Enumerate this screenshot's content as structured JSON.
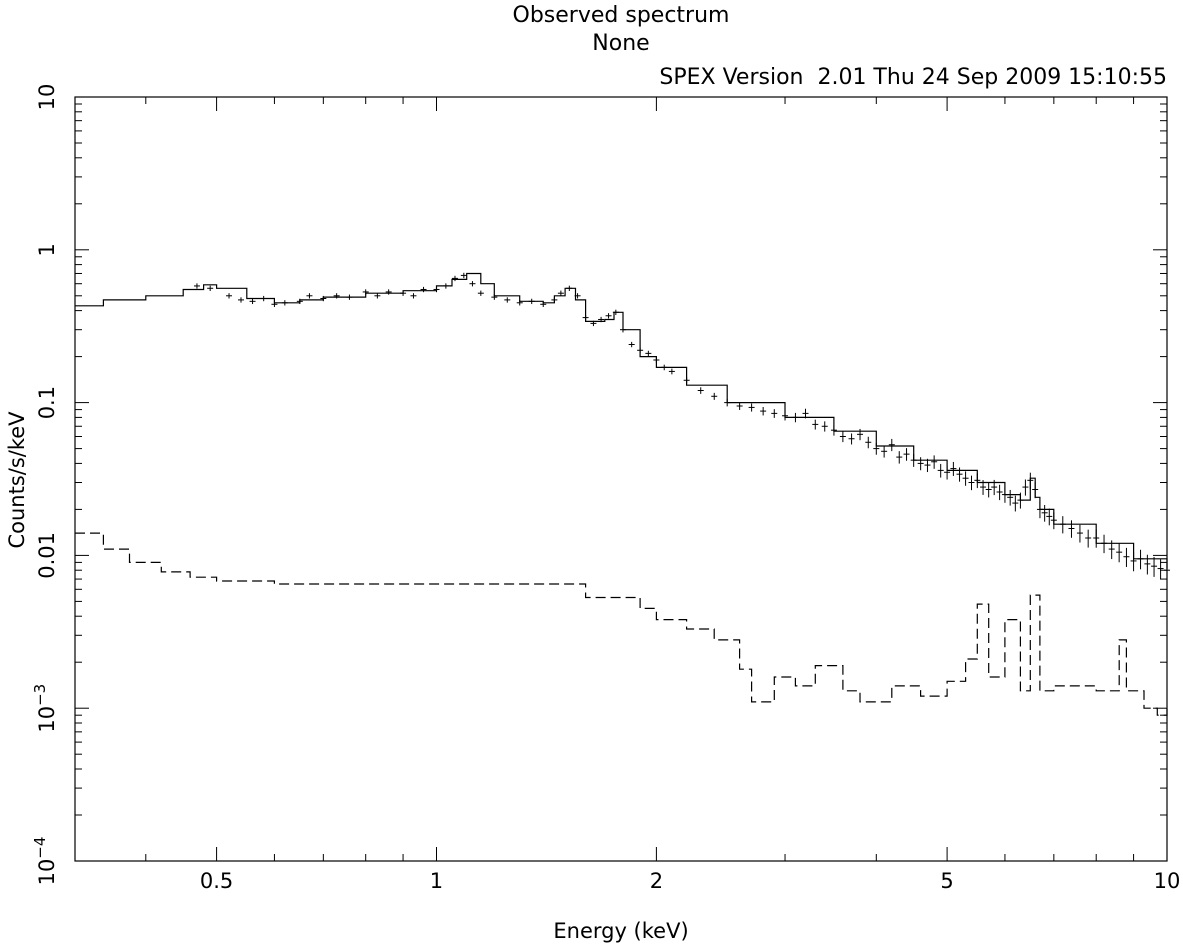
{
  "chart_data": {
    "type": "line",
    "title": "Observed spectrum",
    "subtitle": "None",
    "version_line": "SPEX Version  2.01 Thu 24 Sep 2009 15:10:55",
    "xlabel": "Energy (keV)",
    "ylabel": "Counts/s/keV",
    "xscale": "log",
    "yscale": "log",
    "xlim": [
      0.32,
      10
    ],
    "ylim": [
      0.0001,
      10
    ],
    "x_ticks": [
      {
        "value": 0.5,
        "label": "0.5"
      },
      {
        "value": 1,
        "label": "1"
      },
      {
        "value": 2,
        "label": "2"
      },
      {
        "value": 5,
        "label": "5"
      },
      {
        "value": 10,
        "label": "10"
      }
    ],
    "y_ticks": [
      {
        "value": 10,
        "label": "10"
      },
      {
        "value": 1,
        "label": "1"
      },
      {
        "value": 0.1,
        "label": "0.1"
      },
      {
        "value": 0.01,
        "label": "0.01"
      },
      {
        "value": 0.001,
        "label": "10",
        "exp": "−3"
      },
      {
        "value": 0.0001,
        "label": "10",
        "exp": "−4"
      }
    ],
    "series": [
      {
        "style": "solid",
        "x": [
          0.32,
          0.35,
          0.4,
          0.45,
          0.48,
          0.5,
          0.55,
          0.6,
          0.65,
          0.7,
          0.8,
          0.9,
          1.0,
          1.05,
          1.1,
          1.15,
          1.2,
          1.3,
          1.4,
          1.45,
          1.5,
          1.55,
          1.6,
          1.7,
          1.75,
          1.8,
          1.9,
          2.0,
          2.2,
          2.5,
          3.0,
          3.5,
          4.0,
          4.5,
          5.0,
          5.5,
          6.0,
          6.3,
          6.5,
          6.6,
          6.7,
          7.0,
          8.0,
          9.0,
          10.0
        ],
        "y": [
          0.43,
          0.47,
          0.5,
          0.55,
          0.59,
          0.56,
          0.48,
          0.45,
          0.47,
          0.49,
          0.52,
          0.54,
          0.58,
          0.64,
          0.7,
          0.6,
          0.5,
          0.46,
          0.45,
          0.5,
          0.56,
          0.47,
          0.34,
          0.35,
          0.39,
          0.3,
          0.2,
          0.17,
          0.13,
          0.1,
          0.08,
          0.065,
          0.052,
          0.042,
          0.036,
          0.03,
          0.025,
          0.023,
          0.032,
          0.024,
          0.02,
          0.016,
          0.012,
          0.0095,
          0.0082
        ]
      },
      {
        "style": "dashed",
        "x": [
          0.32,
          0.35,
          0.38,
          0.42,
          0.46,
          0.5,
          0.6,
          0.7,
          0.8,
          0.9,
          1.0,
          1.2,
          1.5,
          1.6,
          1.8,
          1.9,
          2.0,
          2.2,
          2.4,
          2.6,
          2.7,
          2.9,
          3.1,
          3.3,
          3.6,
          3.8,
          4.2,
          4.6,
          5.0,
          5.3,
          5.5,
          5.7,
          6.0,
          6.3,
          6.5,
          6.7,
          7.0,
          8.0,
          8.6,
          8.8,
          9.3,
          9.7,
          10.0
        ],
        "y": [
          0.014,
          0.011,
          0.009,
          0.0078,
          0.0072,
          0.0068,
          0.0065,
          0.0065,
          0.0065,
          0.0065,
          0.0065,
          0.0065,
          0.0065,
          0.0053,
          0.0053,
          0.0045,
          0.0038,
          0.0033,
          0.0028,
          0.0018,
          0.0011,
          0.0016,
          0.0014,
          0.0019,
          0.0013,
          0.0011,
          0.0014,
          0.0012,
          0.0015,
          0.0021,
          0.0048,
          0.0016,
          0.0038,
          0.0013,
          0.0055,
          0.0013,
          0.0014,
          0.0013,
          0.0028,
          0.0013,
          0.001,
          0.0009,
          0.001
        ]
      }
    ],
    "observed_points": {
      "x": [
        0.47,
        0.49,
        0.52,
        0.54,
        0.56,
        0.58,
        0.6,
        0.62,
        0.65,
        0.67,
        0.7,
        0.73,
        0.76,
        0.8,
        0.83,
        0.86,
        0.9,
        0.93,
        0.96,
        1.0,
        1.03,
        1.06,
        1.09,
        1.12,
        1.15,
        1.2,
        1.25,
        1.3,
        1.35,
        1.4,
        1.45,
        1.48,
        1.52,
        1.56,
        1.6,
        1.64,
        1.68,
        1.72,
        1.76,
        1.8,
        1.85,
        1.9,
        1.95,
        2.0,
        2.05,
        2.1,
        2.2,
        2.3,
        2.4,
        2.5,
        2.6,
        2.7,
        2.8,
        2.9,
        3.0,
        3.1,
        3.2,
        3.3,
        3.4,
        3.5,
        3.6,
        3.7,
        3.8,
        3.9,
        4.0,
        4.1,
        4.2,
        4.3,
        4.4,
        4.5,
        4.6,
        4.7,
        4.8,
        4.9,
        5.0,
        5.1,
        5.2,
        5.3,
        5.4,
        5.5,
        5.6,
        5.7,
        5.8,
        5.9,
        6.0,
        6.1,
        6.2,
        6.3,
        6.4,
        6.5,
        6.6,
        6.7,
        6.8,
        6.9,
        7.0,
        7.2,
        7.4,
        7.6,
        7.8,
        8.0,
        8.2,
        8.4,
        8.6,
        8.8,
        9.0,
        9.2,
        9.4,
        9.6,
        9.8,
        10.0
      ],
      "y": [
        0.58,
        0.56,
        0.5,
        0.47,
        0.46,
        0.48,
        0.44,
        0.45,
        0.46,
        0.5,
        0.48,
        0.5,
        0.49,
        0.53,
        0.5,
        0.53,
        0.52,
        0.5,
        0.55,
        0.55,
        0.58,
        0.65,
        0.68,
        0.6,
        0.52,
        0.49,
        0.47,
        0.45,
        0.46,
        0.44,
        0.47,
        0.52,
        0.56,
        0.5,
        0.36,
        0.33,
        0.35,
        0.37,
        0.39,
        0.3,
        0.24,
        0.22,
        0.21,
        0.19,
        0.17,
        0.16,
        0.14,
        0.12,
        0.11,
        0.1,
        0.095,
        0.093,
        0.088,
        0.085,
        0.082,
        0.08,
        0.085,
        0.072,
        0.07,
        0.066,
        0.06,
        0.058,
        0.062,
        0.055,
        0.05,
        0.048,
        0.053,
        0.044,
        0.046,
        0.042,
        0.04,
        0.039,
        0.041,
        0.036,
        0.035,
        0.037,
        0.034,
        0.032,
        0.03,
        0.031,
        0.028,
        0.027,
        0.028,
        0.026,
        0.025,
        0.024,
        0.022,
        0.023,
        0.028,
        0.031,
        0.027,
        0.02,
        0.019,
        0.018,
        0.017,
        0.016,
        0.015,
        0.014,
        0.013,
        0.013,
        0.012,
        0.011,
        0.0105,
        0.0098,
        0.0092,
        0.0095,
        0.0088,
        0.0085,
        0.0082,
        0.008
      ]
    }
  }
}
